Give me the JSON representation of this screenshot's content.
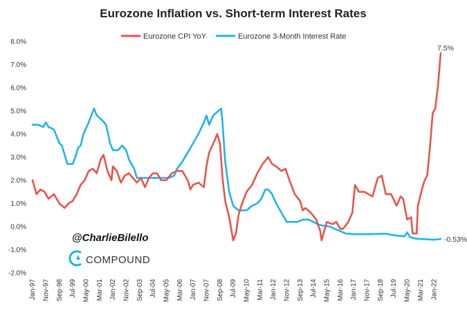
{
  "chart_data": {
    "type": "line",
    "title": "Eurozone Inflation vs. Short-term Interest Rates",
    "xlabel": "",
    "ylabel": "",
    "ylim": [
      -2.0,
      8.0
    ],
    "y_ticks": [
      "8.0%",
      "7.0%",
      "6.0%",
      "5.0%",
      "4.0%",
      "3.0%",
      "2.0%",
      "1.0%",
      "0.0%",
      "-1.0%",
      "-2.0%"
    ],
    "y_tick_values": [
      8,
      7,
      6,
      5,
      4,
      3,
      2,
      1,
      0,
      -1,
      -2
    ],
    "x_range": [
      1997.0,
      2022.42
    ],
    "x_ticks": [
      {
        "label": "Jan-97",
        "x": 1997.0
      },
      {
        "label": "Nov-97",
        "x": 1997.83
      },
      {
        "label": "Sep-98",
        "x": 1998.67
      },
      {
        "label": "Jul-99",
        "x": 1999.5
      },
      {
        "label": "May-00",
        "x": 2000.33
      },
      {
        "label": "Mar-01",
        "x": 2001.17
      },
      {
        "label": "Jan-02",
        "x": 2002.0
      },
      {
        "label": "Nov-02",
        "x": 2002.83
      },
      {
        "label": "Sep-03",
        "x": 2003.67
      },
      {
        "label": "Jul-04",
        "x": 2004.5
      },
      {
        "label": "May-05",
        "x": 2005.33
      },
      {
        "label": "Mar-06",
        "x": 2006.17
      },
      {
        "label": "Jan-07",
        "x": 2007.0
      },
      {
        "label": "Nov-07",
        "x": 2007.83
      },
      {
        "label": "Sep-08",
        "x": 2008.67
      },
      {
        "label": "Jul-09",
        "x": 2009.5
      },
      {
        "label": "May-10",
        "x": 2010.33
      },
      {
        "label": "Mar-11",
        "x": 2011.17
      },
      {
        "label": "Jan-12",
        "x": 2012.0
      },
      {
        "label": "Nov-12",
        "x": 2012.83
      },
      {
        "label": "Sep-13",
        "x": 2013.67
      },
      {
        "label": "Jul-14",
        "x": 2014.5
      },
      {
        "label": "May-15",
        "x": 2015.33
      },
      {
        "label": "Mar-16",
        "x": 2016.17
      },
      {
        "label": "Jan-17",
        "x": 2017.0
      },
      {
        "label": "Nov-17",
        "x": 2017.83
      },
      {
        "label": "Sep-18",
        "x": 2018.67
      },
      {
        "label": "Jul-19",
        "x": 2019.5
      },
      {
        "label": "May-20",
        "x": 2020.33
      },
      {
        "label": "Mar-21",
        "x": 2021.17
      },
      {
        "label": "Jan-22",
        "x": 2022.0
      }
    ],
    "legend": "top-center",
    "series": [
      {
        "name": "Eurozone CPI YoY",
        "color": "#E8534A",
        "end_label": "7.5%",
        "points": [
          [
            1997.0,
            2.0
          ],
          [
            1997.25,
            1.4
          ],
          [
            1997.5,
            1.6
          ],
          [
            1997.75,
            1.5
          ],
          [
            1998.0,
            1.2
          ],
          [
            1998.33,
            1.4
          ],
          [
            1998.67,
            1.0
          ],
          [
            1999.0,
            0.8
          ],
          [
            1999.25,
            1.0
          ],
          [
            1999.5,
            1.1
          ],
          [
            1999.75,
            1.4
          ],
          [
            2000.0,
            1.8
          ],
          [
            2000.25,
            2.0
          ],
          [
            2000.5,
            2.4
          ],
          [
            2000.75,
            2.5
          ],
          [
            2001.0,
            2.3
          ],
          [
            2001.25,
            2.9
          ],
          [
            2001.42,
            3.1
          ],
          [
            2001.67,
            2.4
          ],
          [
            2001.92,
            2.0
          ],
          [
            2002.0,
            2.6
          ],
          [
            2002.25,
            2.4
          ],
          [
            2002.5,
            1.9
          ],
          [
            2002.75,
            2.2
          ],
          [
            2003.0,
            2.3
          ],
          [
            2003.25,
            2.1
          ],
          [
            2003.5,
            1.9
          ],
          [
            2003.75,
            2.1
          ],
          [
            2004.0,
            1.7
          ],
          [
            2004.25,
            2.1
          ],
          [
            2004.5,
            2.3
          ],
          [
            2004.75,
            2.3
          ],
          [
            2005.0,
            2.0
          ],
          [
            2005.33,
            2.0
          ],
          [
            2005.67,
            2.3
          ],
          [
            2006.0,
            2.4
          ],
          [
            2006.33,
            2.4
          ],
          [
            2006.67,
            2.0
          ],
          [
            2006.83,
            1.6
          ],
          [
            2007.0,
            1.8
          ],
          [
            2007.33,
            1.9
          ],
          [
            2007.67,
            1.7
          ],
          [
            2007.83,
            2.6
          ],
          [
            2008.0,
            3.2
          ],
          [
            2008.33,
            3.7
          ],
          [
            2008.5,
            4.0
          ],
          [
            2008.67,
            3.6
          ],
          [
            2008.83,
            2.1
          ],
          [
            2009.0,
            1.1
          ],
          [
            2009.25,
            0.4
          ],
          [
            2009.42,
            -0.3
          ],
          [
            2009.5,
            -0.6
          ],
          [
            2009.67,
            -0.3
          ],
          [
            2009.83,
            0.5
          ],
          [
            2010.0,
            0.9
          ],
          [
            2010.33,
            1.5
          ],
          [
            2010.67,
            1.8
          ],
          [
            2011.0,
            2.3
          ],
          [
            2011.33,
            2.7
          ],
          [
            2011.67,
            3.0
          ],
          [
            2011.92,
            2.7
          ],
          [
            2012.17,
            2.6
          ],
          [
            2012.5,
            2.4
          ],
          [
            2012.75,
            2.5
          ],
          [
            2013.0,
            2.0
          ],
          [
            2013.33,
            1.4
          ],
          [
            2013.67,
            1.1
          ],
          [
            2013.83,
            0.7
          ],
          [
            2014.0,
            0.8
          ],
          [
            2014.33,
            0.6
          ],
          [
            2014.67,
            0.3
          ],
          [
            2014.92,
            -0.2
          ],
          [
            2015.0,
            -0.6
          ],
          [
            2015.33,
            0.2
          ],
          [
            2015.67,
            0.1
          ],
          [
            2015.92,
            0.2
          ],
          [
            2016.17,
            -0.1
          ],
          [
            2016.33,
            -0.1
          ],
          [
            2016.67,
            0.2
          ],
          [
            2016.92,
            0.6
          ],
          [
            2017.08,
            1.8
          ],
          [
            2017.33,
            1.5
          ],
          [
            2017.67,
            1.5
          ],
          [
            2017.92,
            1.4
          ],
          [
            2018.17,
            1.3
          ],
          [
            2018.5,
            2.1
          ],
          [
            2018.75,
            2.2
          ],
          [
            2019.0,
            1.4
          ],
          [
            2019.33,
            1.4
          ],
          [
            2019.67,
            0.9
          ],
          [
            2019.92,
            1.3
          ],
          [
            2020.08,
            1.2
          ],
          [
            2020.33,
            0.3
          ],
          [
            2020.58,
            0.4
          ],
          [
            2020.67,
            -0.3
          ],
          [
            2020.92,
            -0.3
          ],
          [
            2021.0,
            0.9
          ],
          [
            2021.25,
            1.6
          ],
          [
            2021.42,
            2.0
          ],
          [
            2021.58,
            2.2
          ],
          [
            2021.75,
            3.4
          ],
          [
            2021.92,
            4.9
          ],
          [
            2022.08,
            5.1
          ],
          [
            2022.25,
            6.1
          ],
          [
            2022.42,
            7.5
          ]
        ]
      },
      {
        "name": "Eurozone 3-Month Interest Rate",
        "color": "#1EB4E6",
        "end_label": "-0.53%",
        "points": [
          [
            1997.0,
            4.4
          ],
          [
            1997.33,
            4.4
          ],
          [
            1997.67,
            4.3
          ],
          [
            1997.83,
            4.5
          ],
          [
            1998.0,
            4.3
          ],
          [
            1998.33,
            4.2
          ],
          [
            1998.67,
            3.6
          ],
          [
            1998.83,
            3.5
          ],
          [
            1999.0,
            3.1
          ],
          [
            1999.17,
            2.7
          ],
          [
            1999.5,
            2.7
          ],
          [
            1999.67,
            3.0
          ],
          [
            1999.83,
            3.4
          ],
          [
            2000.0,
            3.5
          ],
          [
            2000.17,
            4.0
          ],
          [
            2000.5,
            4.5
          ],
          [
            2000.83,
            5.1
          ],
          [
            2001.0,
            4.8
          ],
          [
            2001.33,
            4.6
          ],
          [
            2001.58,
            4.4
          ],
          [
            2001.83,
            3.6
          ],
          [
            2002.0,
            3.3
          ],
          [
            2002.33,
            3.3
          ],
          [
            2002.58,
            3.5
          ],
          [
            2002.83,
            3.3
          ],
          [
            2003.0,
            2.9
          ],
          [
            2003.33,
            2.5
          ],
          [
            2003.5,
            2.1
          ],
          [
            2003.83,
            2.1
          ],
          [
            2004.33,
            2.1
          ],
          [
            2004.67,
            2.1
          ],
          [
            2005.0,
            2.1
          ],
          [
            2005.5,
            2.1
          ],
          [
            2005.83,
            2.2
          ],
          [
            2006.0,
            2.5
          ],
          [
            2006.33,
            2.8
          ],
          [
            2006.67,
            3.2
          ],
          [
            2007.0,
            3.6
          ],
          [
            2007.33,
            4.0
          ],
          [
            2007.67,
            4.5
          ],
          [
            2007.83,
            4.8
          ],
          [
            2008.0,
            4.4
          ],
          [
            2008.25,
            4.8
          ],
          [
            2008.58,
            5.0
          ],
          [
            2008.75,
            5.1
          ],
          [
            2008.83,
            4.5
          ],
          [
            2009.0,
            2.8
          ],
          [
            2009.25,
            1.5
          ],
          [
            2009.5,
            0.9
          ],
          [
            2009.83,
            0.7
          ],
          [
            2010.0,
            0.7
          ],
          [
            2010.33,
            0.7
          ],
          [
            2010.67,
            0.9
          ],
          [
            2011.0,
            1.0
          ],
          [
            2011.25,
            1.2
          ],
          [
            2011.5,
            1.6
          ],
          [
            2011.67,
            1.6
          ],
          [
            2011.92,
            1.4
          ],
          [
            2012.17,
            1.0
          ],
          [
            2012.5,
            0.6
          ],
          [
            2012.83,
            0.2
          ],
          [
            2013.0,
            0.2
          ],
          [
            2013.5,
            0.2
          ],
          [
            2013.83,
            0.3
          ],
          [
            2014.17,
            0.3
          ],
          [
            2014.5,
            0.2
          ],
          [
            2014.75,
            0.1
          ],
          [
            2015.0,
            0.05
          ],
          [
            2015.5,
            0.0
          ],
          [
            2015.83,
            -0.1
          ],
          [
            2016.17,
            -0.2
          ],
          [
            2016.5,
            -0.3
          ],
          [
            2017.0,
            -0.33
          ],
          [
            2017.5,
            -0.33
          ],
          [
            2018.0,
            -0.33
          ],
          [
            2018.5,
            -0.32
          ],
          [
            2019.0,
            -0.31
          ],
          [
            2019.5,
            -0.38
          ],
          [
            2019.83,
            -0.4
          ],
          [
            2020.17,
            -0.42
          ],
          [
            2020.33,
            -0.25
          ],
          [
            2020.5,
            -0.45
          ],
          [
            2020.83,
            -0.52
          ],
          [
            2021.17,
            -0.54
          ],
          [
            2021.58,
            -0.55
          ],
          [
            2021.92,
            -0.57
          ],
          [
            2022.17,
            -0.56
          ],
          [
            2022.42,
            -0.53
          ]
        ]
      }
    ]
  },
  "branding": {
    "handle": "@CharlieBilello",
    "logo_text": "COMPOUND"
  }
}
